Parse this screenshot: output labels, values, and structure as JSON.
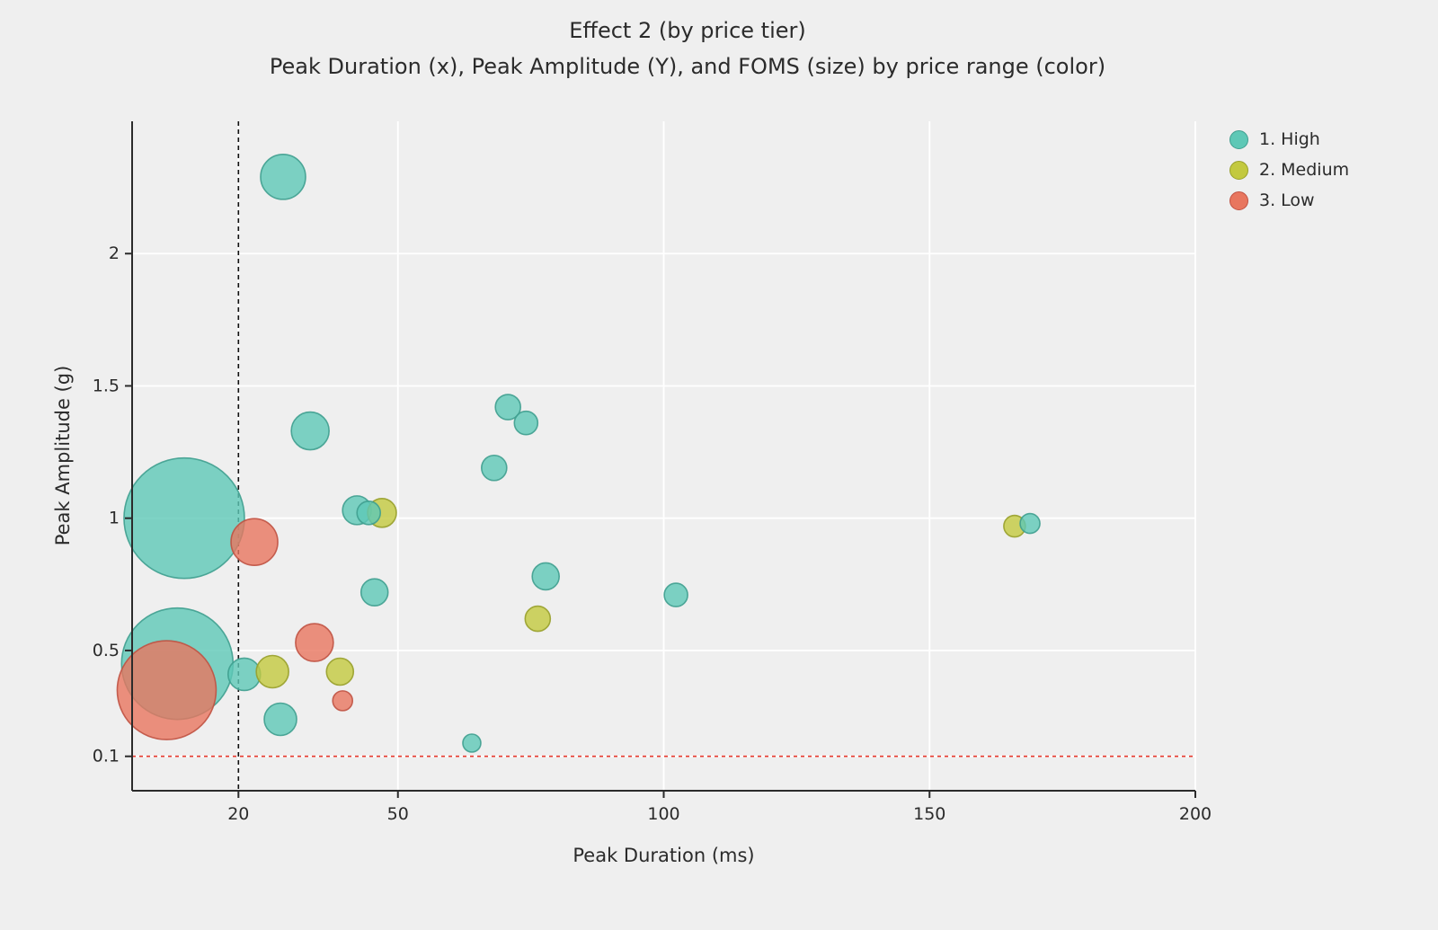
{
  "title": "Effect 2 (by price tier)",
  "subtitle": "Peak Duration (x), Peak Amplitude (Y), and FOMS (size) by price range (color)",
  "chart_data": {
    "type": "scatter",
    "title": "Effect 2 (by price tier)",
    "subtitle": "Peak Duration (x), Peak Amplitude (Y), and FOMS (size) by price range (color)",
    "xlabel": "Peak Duration (ms)",
    "ylabel": "Peak Amplitude (g)",
    "xlim": [
      0,
      200
    ],
    "ylim": [
      -0.03,
      2.5
    ],
    "xticks": [
      20,
      50,
      100,
      150,
      200
    ],
    "yticks": [
      0.1,
      0.5,
      1,
      1.5,
      2
    ],
    "grid": true,
    "grid_color": "#ffffff",
    "background_color": "#efefef",
    "axis_color": "#2b2b2b",
    "legend_position": "upper right",
    "size_meaning": "FOMS",
    "reference_lines": [
      {
        "axis": "x",
        "value": 20,
        "style": "dashed",
        "color": "#111111"
      },
      {
        "axis": "y",
        "value": 0.1,
        "style": "dashed",
        "color": "#e6392e"
      }
    ],
    "series": [
      {
        "name": "1. High",
        "color": "#5ec8b6",
        "edge_color": "#3f9e8f",
        "points": [
          {
            "x": 9.8,
            "y": 1.0,
            "r": 67
          },
          {
            "x": 8.5,
            "y": 0.45,
            "r": 62
          },
          {
            "x": 28.4,
            "y": 2.29,
            "r": 25
          },
          {
            "x": 33.5,
            "y": 1.33,
            "r": 21
          },
          {
            "x": 42.3,
            "y": 1.03,
            "r": 16
          },
          {
            "x": 44.5,
            "y": 1.02,
            "r": 13
          },
          {
            "x": 45.6,
            "y": 0.72,
            "r": 15
          },
          {
            "x": 23.0,
            "y": 0.91,
            "r": 0
          },
          {
            "x": 70.7,
            "y": 1.42,
            "r": 14
          },
          {
            "x": 74.1,
            "y": 1.36,
            "r": 13
          },
          {
            "x": 68.1,
            "y": 1.19,
            "r": 14
          },
          {
            "x": 77.8,
            "y": 0.78,
            "r": 15
          },
          {
            "x": 102.3,
            "y": 0.71,
            "r": 13
          },
          {
            "x": 168.9,
            "y": 0.98,
            "r": 11
          },
          {
            "x": 21.1,
            "y": 0.41,
            "r": 18
          },
          {
            "x": 27.9,
            "y": 0.24,
            "r": 18
          },
          {
            "x": 63.9,
            "y": 0.15,
            "r": 10
          }
        ]
      },
      {
        "name": "2. Medium",
        "color": "#c3c93f",
        "edge_color": "#98a02b",
        "points": [
          {
            "x": 47.0,
            "y": 1.02,
            "r": 16
          },
          {
            "x": 76.3,
            "y": 0.62,
            "r": 14
          },
          {
            "x": 166.0,
            "y": 0.97,
            "r": 12
          },
          {
            "x": 26.4,
            "y": 0.42,
            "r": 18
          },
          {
            "x": 39.1,
            "y": 0.42,
            "r": 15
          }
        ]
      },
      {
        "name": "3. Low",
        "color": "#e8765f",
        "edge_color": "#c05243",
        "points": [
          {
            "x": 6.5,
            "y": 0.35,
            "r": 55
          },
          {
            "x": 23.0,
            "y": 0.91,
            "r": 26
          },
          {
            "x": 34.3,
            "y": 0.53,
            "r": 21
          },
          {
            "x": 39.6,
            "y": 0.31,
            "r": 11
          }
        ]
      }
    ]
  }
}
